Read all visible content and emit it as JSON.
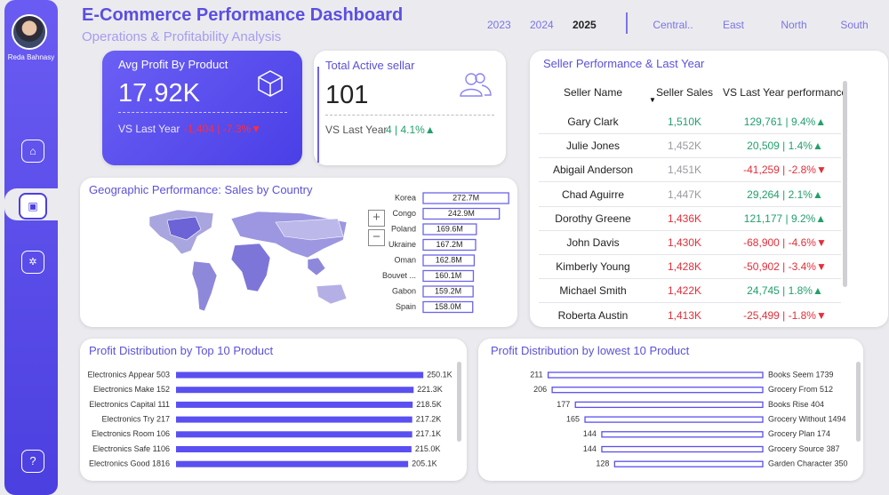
{
  "sidebar": {
    "user_name": "Reda Bahnasy"
  },
  "header": {
    "title": "E-Commerce Performance Dashboard",
    "subtitle": "Operations & Profitability Analysis"
  },
  "year_slicer": {
    "options": [
      "2023",
      "2024",
      "2025"
    ],
    "selected": 2
  },
  "region_slicer": {
    "options": [
      "Central..",
      "East",
      "North",
      "South"
    ]
  },
  "kpi_profit": {
    "title": "Avg Profit By Product",
    "value": "17.92K",
    "compare_label": "VS Last Year",
    "compare_value": "-1,404 | -7.3%▼"
  },
  "kpi_sellers": {
    "title": "Total Active sellar",
    "value": "101",
    "compare_label": "VS Last Year",
    "compare_value": "4 | 4.1%▲"
  },
  "seller_table": {
    "title": "Seller Performance & Last Year",
    "columns": [
      "Seller Name",
      "Seller Sales",
      "VS Last Year performance"
    ],
    "rows": [
      {
        "name": "Gary Clark",
        "sales": "1,510K",
        "vs": "129,761 | 9.4%▲",
        "sales_color": "#22a06b",
        "vs_color": "#22a06b"
      },
      {
        "name": "Julie Jones",
        "sales": "1,452K",
        "vs": "20,509 | 1.4%▲",
        "sales_color": "#9a9aa2",
        "vs_color": "#22a06b"
      },
      {
        "name": "Abigail Anderson",
        "sales": "1,451K",
        "vs": "-41,259 | -2.8%▼",
        "sales_color": "#9a9aa2",
        "vs_color": "#e0303a"
      },
      {
        "name": "Chad Aguirre",
        "sales": "1,447K",
        "vs": "29,264 | 2.1%▲",
        "sales_color": "#9a9aa2",
        "vs_color": "#22a06b"
      },
      {
        "name": "Dorothy Greene",
        "sales": "1,436K",
        "vs": "121,177 | 9.2%▲",
        "sales_color": "#e0303a",
        "vs_color": "#22a06b"
      },
      {
        "name": "John Davis",
        "sales": "1,430K",
        "vs": "-68,900 | -4.6%▼",
        "sales_color": "#e0303a",
        "vs_color": "#e0303a"
      },
      {
        "name": "Kimberly Young",
        "sales": "1,428K",
        "vs": "-50,902 | -3.4%▼",
        "sales_color": "#e0303a",
        "vs_color": "#e0303a"
      },
      {
        "name": "Michael Smith",
        "sales": "1,422K",
        "vs": "24,745 | 1.8%▲",
        "sales_color": "#e0303a",
        "vs_color": "#22a06b"
      },
      {
        "name": "Roberta Austin",
        "sales": "1,413K",
        "vs": "-25,499 | -1.8%▼",
        "sales_color": "#e0303a",
        "vs_color": "#e0303a"
      }
    ]
  },
  "chart_data": [
    {
      "type": "bar",
      "title": "Geographic Performance: Sales by Country",
      "categories": [
        "Korea",
        "Congo",
        "Poland",
        "Ukraine",
        "Oman",
        "Bouvet ...",
        "Gabon",
        "Spain"
      ],
      "values": [
        272.7,
        242.9,
        169.6,
        167.2,
        162.8,
        160.1,
        159.2,
        158.0
      ],
      "value_labels": [
        "272.7M",
        "242.9M",
        "169.6M",
        "167.2M",
        "162.8M",
        "160.1M",
        "159.2M",
        "158.0M"
      ],
      "color": "#6c63e8",
      "xlim": [
        0,
        275
      ]
    },
    {
      "type": "bar",
      "title": "Profit Distribution by Top 10 Product",
      "categories": [
        "Electronics Appear 503",
        "Electronics Make 152",
        "Electronics Capital 111",
        "Electronics Try 217",
        "Electronics Room 106",
        "Electronics Safe 1106",
        "Electronics Good 1816"
      ],
      "values": [
        250.1,
        221.3,
        218.5,
        217.2,
        217.1,
        215.0,
        205.1
      ],
      "value_labels": [
        "250.1K",
        "221.3K",
        "218.5K",
        "217.2K",
        "217.1K",
        "215.0K",
        "205.1K"
      ],
      "color": "#5a4ff0",
      "xlim": [
        -485,
        255
      ]
    },
    {
      "type": "bar",
      "title": "Profit Distribution by lowest 10 Product",
      "categories": [
        "Books Seem 1739",
        "Grocery From 512",
        "Books Rise 404",
        "Grocery Without 1494",
        "Grocery Plan 174",
        "Grocery Source 387",
        "Garden Character 350"
      ],
      "values": [
        211,
        206,
        177,
        165,
        144,
        144,
        128
      ],
      "color": "#5a4ff0",
      "xlim": [
        -57,
        215
      ]
    }
  ]
}
